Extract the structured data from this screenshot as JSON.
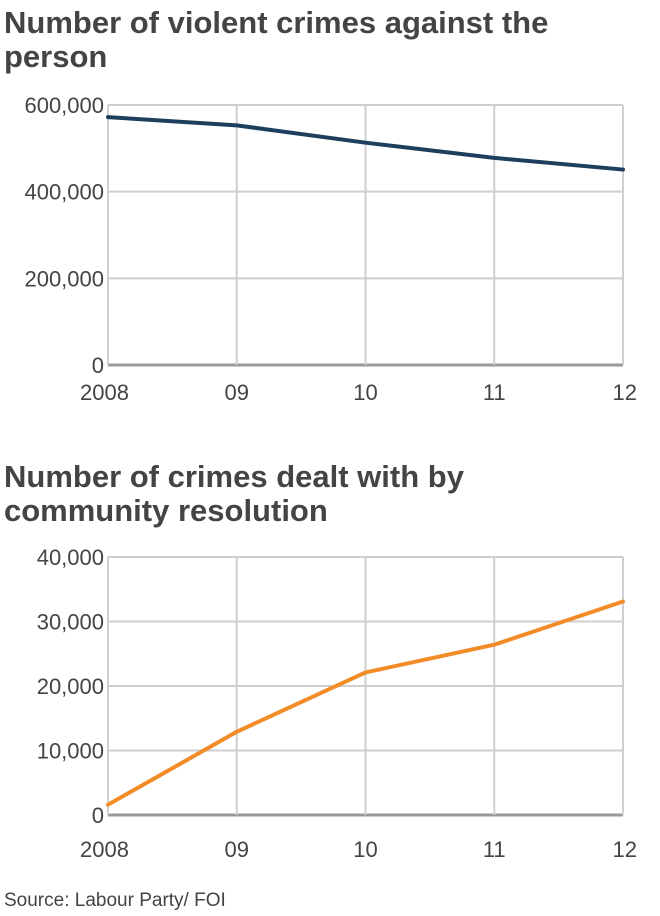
{
  "chart_data": [
    {
      "type": "line",
      "title": "Number of violent crimes against the person",
      "x": [
        "2008",
        "09",
        "10",
        "11",
        "12"
      ],
      "series": [
        {
          "name": "Violent crimes against the person",
          "values": [
            572000,
            553000,
            513000,
            478000,
            451000
          ],
          "color": "#1c3f5e"
        }
      ],
      "yticks": [
        0,
        200000,
        400000,
        600000
      ],
      "ytick_labels": [
        "0",
        "200,000",
        "400,000",
        "600,000"
      ],
      "ylim": [
        0,
        600000
      ],
      "xlabel": "",
      "ylabel": "",
      "grid": true
    },
    {
      "type": "line",
      "title": "Number of crimes dealt with by community resolution",
      "x": [
        "2008",
        "09",
        "10",
        "11",
        "12"
      ],
      "series": [
        {
          "name": "Community resolutions",
          "values": [
            1600,
            12900,
            22100,
            26400,
            33100
          ],
          "color": "#f28c28"
        }
      ],
      "yticks": [
        0,
        10000,
        20000,
        30000,
        40000
      ],
      "ytick_labels": [
        "0",
        "10,000",
        "20,000",
        "30,000",
        "40,000"
      ],
      "ylim": [
        0,
        40000
      ],
      "xlabel": "",
      "ylabel": "",
      "grid": true
    }
  ],
  "source": "Source: Labour Party/ FOI"
}
